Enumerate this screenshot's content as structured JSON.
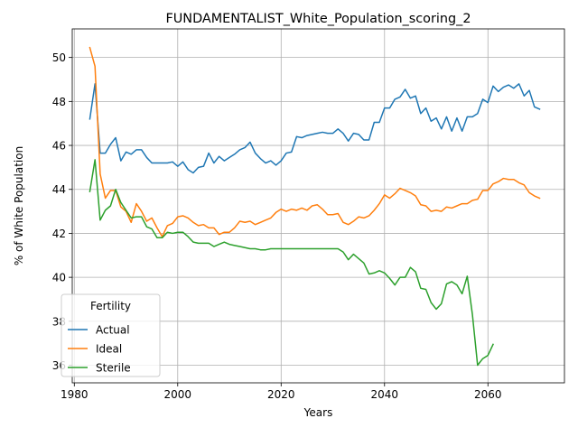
{
  "chart_data": {
    "type": "line",
    "title": "FUNDAMENTALIST_White_Population_scoring_2",
    "xlabel": "Years",
    "ylabel": "% of White Population",
    "xlim": [
      1979.6,
      2074.8
    ],
    "ylim": [
      35.2,
      51.3
    ],
    "xticks": [
      1980,
      2000,
      2020,
      2040,
      2060
    ],
    "yticks": [
      36,
      38,
      40,
      42,
      44,
      46,
      48,
      50
    ],
    "grid": true,
    "legend": {
      "title": "Fertility",
      "placement": "lower-left"
    },
    "series": [
      {
        "name": "Actual",
        "color": "#1f77b4",
        "points": [
          [
            1983,
            47.2
          ],
          [
            1984,
            48.8
          ],
          [
            1985,
            45.65
          ],
          [
            1986,
            45.65
          ],
          [
            1987,
            46.05
          ],
          [
            1988,
            46.35
          ],
          [
            1989,
            45.3
          ],
          [
            1990,
            45.7
          ],
          [
            1991,
            45.6
          ],
          [
            1992,
            45.8
          ],
          [
            1993,
            45.8
          ],
          [
            1994,
            45.45
          ],
          [
            1995,
            45.2
          ],
          [
            1996,
            45.2
          ],
          [
            1997,
            45.2
          ],
          [
            1998,
            45.2
          ],
          [
            1999,
            45.25
          ],
          [
            2000,
            45.05
          ],
          [
            2001,
            45.25
          ],
          [
            2002,
            44.9
          ],
          [
            2003,
            44.75
          ],
          [
            2004,
            45.0
          ],
          [
            2005,
            45.05
          ],
          [
            2006,
            45.65
          ],
          [
            2007,
            45.2
          ],
          [
            2008,
            45.5
          ],
          [
            2009,
            45.3
          ],
          [
            2010,
            45.45
          ],
          [
            2011,
            45.6
          ],
          [
            2012,
            45.8
          ],
          [
            2013,
            45.9
          ],
          [
            2014,
            46.15
          ],
          [
            2015,
            45.65
          ],
          [
            2016,
            45.4
          ],
          [
            2017,
            45.2
          ],
          [
            2018,
            45.3
          ],
          [
            2019,
            45.1
          ],
          [
            2020,
            45.3
          ],
          [
            2021,
            45.65
          ],
          [
            2022,
            45.7
          ],
          [
            2023,
            46.4
          ],
          [
            2024,
            46.35
          ],
          [
            2025,
            46.45
          ],
          [
            2026,
            46.5
          ],
          [
            2027,
            46.55
          ],
          [
            2028,
            46.6
          ],
          [
            2029,
            46.55
          ],
          [
            2030,
            46.55
          ],
          [
            2031,
            46.75
          ],
          [
            2032,
            46.55
          ],
          [
            2033,
            46.2
          ],
          [
            2034,
            46.55
          ],
          [
            2035,
            46.5
          ],
          [
            2036,
            46.25
          ],
          [
            2037,
            46.25
          ],
          [
            2038,
            47.05
          ],
          [
            2039,
            47.05
          ],
          [
            2040,
            47.7
          ],
          [
            2041,
            47.7
          ],
          [
            2042,
            48.1
          ],
          [
            2043,
            48.2
          ],
          [
            2044,
            48.55
          ],
          [
            2045,
            48.15
          ],
          [
            2046,
            48.25
          ],
          [
            2047,
            47.45
          ],
          [
            2048,
            47.7
          ],
          [
            2049,
            47.1
          ],
          [
            2050,
            47.25
          ],
          [
            2051,
            46.75
          ],
          [
            2052,
            47.3
          ],
          [
            2053,
            46.65
          ],
          [
            2054,
            47.25
          ],
          [
            2055,
            46.65
          ],
          [
            2056,
            47.3
          ],
          [
            2057,
            47.3
          ],
          [
            2058,
            47.45
          ],
          [
            2059,
            48.1
          ],
          [
            2060,
            47.95
          ],
          [
            2061,
            48.7
          ],
          [
            2062,
            48.45
          ],
          [
            2063,
            48.65
          ],
          [
            2064,
            48.75
          ],
          [
            2065,
            48.6
          ],
          [
            2066,
            48.8
          ],
          [
            2067,
            48.25
          ],
          [
            2068,
            48.5
          ],
          [
            2069,
            47.75
          ],
          [
            2070,
            47.65
          ]
        ]
      },
      {
        "name": "Ideal",
        "color": "#ff7f0e",
        "points": [
          [
            1983,
            50.45
          ],
          [
            1984,
            49.6
          ],
          [
            1985,
            44.7
          ],
          [
            1986,
            43.6
          ],
          [
            1987,
            43.95
          ],
          [
            1988,
            43.95
          ],
          [
            1989,
            43.2
          ],
          [
            1990,
            43.0
          ],
          [
            1991,
            42.5
          ],
          [
            1992,
            43.35
          ],
          [
            1993,
            43.0
          ],
          [
            1994,
            42.55
          ],
          [
            1995,
            42.7
          ],
          [
            1996,
            42.25
          ],
          [
            1997,
            41.85
          ],
          [
            1998,
            42.35
          ],
          [
            1999,
            42.45
          ],
          [
            2000,
            42.75
          ],
          [
            2001,
            42.8
          ],
          [
            2002,
            42.7
          ],
          [
            2003,
            42.5
          ],
          [
            2004,
            42.35
          ],
          [
            2005,
            42.4
          ],
          [
            2006,
            42.25
          ],
          [
            2007,
            42.25
          ],
          [
            2008,
            41.95
          ],
          [
            2009,
            42.05
          ],
          [
            2010,
            42.05
          ],
          [
            2011,
            42.25
          ],
          [
            2012,
            42.55
          ],
          [
            2013,
            42.5
          ],
          [
            2014,
            42.55
          ],
          [
            2015,
            42.4
          ],
          [
            2016,
            42.5
          ],
          [
            2017,
            42.6
          ],
          [
            2018,
            42.7
          ],
          [
            2019,
            42.95
          ],
          [
            2020,
            43.1
          ],
          [
            2021,
            43.0
          ],
          [
            2022,
            43.1
          ],
          [
            2023,
            43.05
          ],
          [
            2024,
            43.15
          ],
          [
            2025,
            43.05
          ],
          [
            2026,
            43.25
          ],
          [
            2027,
            43.3
          ],
          [
            2028,
            43.1
          ],
          [
            2029,
            42.85
          ],
          [
            2030,
            42.85
          ],
          [
            2031,
            42.9
          ],
          [
            2032,
            42.5
          ],
          [
            2033,
            42.4
          ],
          [
            2034,
            42.55
          ],
          [
            2035,
            42.75
          ],
          [
            2036,
            42.7
          ],
          [
            2037,
            42.8
          ],
          [
            2038,
            43.05
          ],
          [
            2039,
            43.35
          ],
          [
            2040,
            43.75
          ],
          [
            2041,
            43.6
          ],
          [
            2042,
            43.8
          ],
          [
            2043,
            44.05
          ],
          [
            2044,
            43.95
          ],
          [
            2045,
            43.85
          ],
          [
            2046,
            43.7
          ],
          [
            2047,
            43.3
          ],
          [
            2048,
            43.25
          ],
          [
            2049,
            43.0
          ],
          [
            2050,
            43.05
          ],
          [
            2051,
            43.0
          ],
          [
            2052,
            43.2
          ],
          [
            2053,
            43.15
          ],
          [
            2054,
            43.25
          ],
          [
            2055,
            43.35
          ],
          [
            2056,
            43.35
          ],
          [
            2057,
            43.5
          ],
          [
            2058,
            43.55
          ],
          [
            2059,
            43.95
          ],
          [
            2060,
            43.95
          ],
          [
            2061,
            44.25
          ],
          [
            2062,
            44.35
          ],
          [
            2063,
            44.5
          ],
          [
            2064,
            44.45
          ],
          [
            2065,
            44.45
          ],
          [
            2066,
            44.3
          ],
          [
            2067,
            44.2
          ],
          [
            2068,
            43.85
          ],
          [
            2069,
            43.7
          ],
          [
            2070,
            43.6
          ]
        ]
      },
      {
        "name": "Sterile",
        "color": "#2ca02c",
        "points": [
          [
            1983,
            43.9
          ],
          [
            1984,
            45.35
          ],
          [
            1985,
            42.6
          ],
          [
            1986,
            43.05
          ],
          [
            1987,
            43.25
          ],
          [
            1988,
            44.0
          ],
          [
            1989,
            43.4
          ],
          [
            1990,
            43.05
          ],
          [
            1991,
            42.7
          ],
          [
            1992,
            42.75
          ],
          [
            1993,
            42.75
          ],
          [
            1994,
            42.3
          ],
          [
            1995,
            42.2
          ],
          [
            1996,
            41.8
          ],
          [
            1997,
            41.8
          ],
          [
            1998,
            42.05
          ],
          [
            1999,
            42.0
          ],
          [
            2000,
            42.05
          ],
          [
            2001,
            42.05
          ],
          [
            2002,
            41.85
          ],
          [
            2003,
            41.6
          ],
          [
            2004,
            41.55
          ],
          [
            2005,
            41.55
          ],
          [
            2006,
            41.55
          ],
          [
            2007,
            41.4
          ],
          [
            2008,
            41.5
          ],
          [
            2009,
            41.6
          ],
          [
            2010,
            41.5
          ],
          [
            2011,
            41.45
          ],
          [
            2012,
            41.4
          ],
          [
            2013,
            41.35
          ],
          [
            2014,
            41.3
          ],
          [
            2015,
            41.3
          ],
          [
            2016,
            41.25
          ],
          [
            2017,
            41.25
          ],
          [
            2018,
            41.3
          ],
          [
            2019,
            41.3
          ],
          [
            2020,
            41.3
          ],
          [
            2021,
            41.3
          ],
          [
            2022,
            41.3
          ],
          [
            2023,
            41.3
          ],
          [
            2024,
            41.3
          ],
          [
            2025,
            41.3
          ],
          [
            2026,
            41.3
          ],
          [
            2027,
            41.3
          ],
          [
            2028,
            41.3
          ],
          [
            2029,
            41.3
          ],
          [
            2030,
            41.3
          ],
          [
            2031,
            41.3
          ],
          [
            2032,
            41.15
          ],
          [
            2033,
            40.8
          ],
          [
            2034,
            41.05
          ],
          [
            2035,
            40.85
          ],
          [
            2036,
            40.65
          ],
          [
            2037,
            40.15
          ],
          [
            2038,
            40.2
          ],
          [
            2039,
            40.3
          ],
          [
            2040,
            40.2
          ],
          [
            2041,
            39.95
          ],
          [
            2042,
            39.65
          ],
          [
            2043,
            40.0
          ],
          [
            2044,
            40.0
          ],
          [
            2045,
            40.45
          ],
          [
            2046,
            40.25
          ],
          [
            2047,
            39.5
          ],
          [
            2048,
            39.45
          ],
          [
            2049,
            38.85
          ],
          [
            2050,
            38.55
          ],
          [
            2051,
            38.8
          ],
          [
            2052,
            39.7
          ],
          [
            2053,
            39.8
          ],
          [
            2054,
            39.65
          ],
          [
            2055,
            39.25
          ],
          [
            2056,
            40.05
          ],
          [
            2057,
            38.3
          ],
          [
            2058,
            36.0
          ],
          [
            2059,
            36.3
          ],
          [
            2060,
            36.45
          ],
          [
            2061,
            36.95
          ]
        ]
      }
    ]
  }
}
